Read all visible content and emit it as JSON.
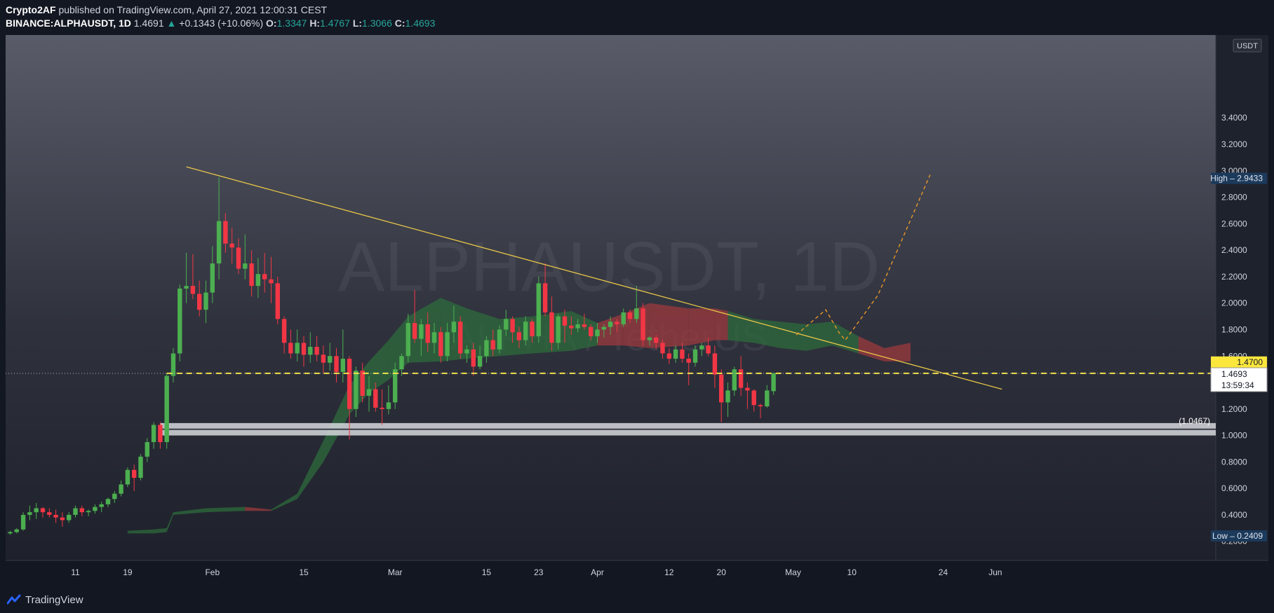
{
  "header": {
    "author": "Crypto2AF",
    "published": "published on TradingView.com, April 27, 2021 12:00:31 CEST",
    "symbol": "BINANCE:ALPHAUSDT, 1D",
    "last": "1.4691",
    "change_arrow": "▲",
    "change": "+0.1343 (+10.06%)",
    "o_label": "O:",
    "o_value": "1.3347",
    "h_label": "H:",
    "h_value": "1.4767",
    "l_label": "L:",
    "l_value": "1.3066",
    "c_label": "C:",
    "c_value": "1.4693"
  },
  "footer": {
    "brand": "TradingView",
    "logo_icon": "tradingview-logo-icon"
  },
  "chart_data": {
    "type": "candlestick",
    "watermark_symbol": "ALPHAUSDT, 1D",
    "watermark_name": "ALPHA / TetherUS",
    "currency_label": "USDT",
    "price_axis_ticks": [
      "3.4000",
      "3.2000",
      "3.0000",
      "2.8000",
      "2.6000",
      "2.4000",
      "2.2000",
      "2.0000",
      "1.8000",
      "1.6000",
      "1.4000",
      "1.2000",
      "1.0000",
      "0.8000",
      "0.6000",
      "0.4000",
      "0.2000"
    ],
    "time_axis_ticks": [
      {
        "label": "11",
        "day": 10
      },
      {
        "label": "19",
        "day": 18
      },
      {
        "label": "Feb",
        "day": 31
      },
      {
        "label": "15",
        "day": 45
      },
      {
        "label": "Mar",
        "day": 59
      },
      {
        "label": "15",
        "day": 73
      },
      {
        "label": "23",
        "day": 81
      },
      {
        "label": "Apr",
        "day": 90
      },
      {
        "label": "12",
        "day": 101
      },
      {
        "label": "20",
        "day": 109
      },
      {
        "label": "May",
        "day": 120
      },
      {
        "label": "10",
        "day": 129
      },
      {
        "label": "24",
        "day": 143
      },
      {
        "label": "Jun",
        "day": 151
      }
    ],
    "ylim": [
      0.2,
      3.45
    ],
    "xlim_days": [
      0,
      152
    ],
    "high_marker": {
      "label": "High",
      "value": "2.9433"
    },
    "low_marker": {
      "label": "Low",
      "value": "0.2409"
    },
    "level_line": {
      "value": 1.47,
      "label": "1.4700",
      "color": "#fbe73c"
    },
    "current_price": {
      "value": 1.4693,
      "label": "1.4693",
      "countdown": "13:59:34"
    },
    "support_zone": {
      "low": 1.0,
      "high": 1.0937,
      "label": "(1.0467)"
    },
    "trendline": {
      "start_day": 27,
      "start_price": 3.03,
      "end_day": 152,
      "end_price": 1.35
    },
    "projection": [
      [
        120.5,
        1.76
      ],
      [
        125,
        1.95
      ],
      [
        127,
        1.78
      ],
      [
        128,
        1.72
      ],
      [
        133,
        2.06
      ],
      [
        141,
        2.97
      ]
    ],
    "colors": {
      "up": "#4caf50",
      "down": "#f23645",
      "cloud_green": "#2e6b3c",
      "cloud_red": "#9c3a3e",
      "trend": "#e8c547",
      "projection": "#f59b25"
    },
    "candles": [
      [
        0.26,
        0.28,
        0.25,
        0.27
      ],
      [
        0.27,
        0.3,
        0.26,
        0.29
      ],
      [
        0.29,
        0.42,
        0.28,
        0.4
      ],
      [
        0.4,
        0.47,
        0.36,
        0.42
      ],
      [
        0.42,
        0.49,
        0.37,
        0.45
      ],
      [
        0.45,
        0.46,
        0.38,
        0.42
      ],
      [
        0.42,
        0.45,
        0.38,
        0.4
      ],
      [
        0.4,
        0.44,
        0.34,
        0.38
      ],
      [
        0.38,
        0.42,
        0.31,
        0.36
      ],
      [
        0.36,
        0.42,
        0.34,
        0.4
      ],
      [
        0.4,
        0.47,
        0.38,
        0.45
      ],
      [
        0.45,
        0.47,
        0.39,
        0.42
      ],
      [
        0.42,
        0.44,
        0.39,
        0.43
      ],
      [
        0.43,
        0.48,
        0.41,
        0.46
      ],
      [
        0.46,
        0.5,
        0.42,
        0.48
      ],
      [
        0.48,
        0.53,
        0.46,
        0.52
      ],
      [
        0.52,
        0.58,
        0.49,
        0.56
      ],
      [
        0.56,
        0.66,
        0.54,
        0.63
      ],
      [
        0.63,
        0.76,
        0.61,
        0.74
      ],
      [
        0.74,
        0.78,
        0.58,
        0.68
      ],
      [
        0.68,
        0.86,
        0.66,
        0.84
      ],
      [
        0.84,
        0.98,
        0.8,
        0.95
      ],
      [
        0.95,
        1.1,
        0.9,
        1.08
      ],
      [
        1.08,
        1.1,
        0.9,
        0.95
      ],
      [
        0.95,
        1.47,
        0.9,
        1.45
      ],
      [
        1.45,
        1.66,
        1.4,
        1.62
      ],
      [
        1.62,
        2.14,
        1.56,
        2.11
      ],
      [
        2.11,
        2.38,
        2.0,
        2.13
      ],
      [
        2.13,
        2.37,
        2.03,
        2.07
      ],
      [
        2.07,
        2.17,
        1.9,
        1.95
      ],
      [
        1.95,
        2.17,
        1.85,
        2.08
      ],
      [
        2.08,
        2.43,
        2.0,
        2.3
      ],
      [
        2.3,
        2.95,
        2.18,
        2.62
      ],
      [
        2.62,
        2.68,
        2.38,
        2.45
      ],
      [
        2.45,
        2.57,
        2.3,
        2.42
      ],
      [
        2.42,
        2.49,
        2.22,
        2.26
      ],
      [
        2.26,
        2.52,
        2.18,
        2.3
      ],
      [
        2.3,
        2.4,
        2.05,
        2.13
      ],
      [
        2.13,
        2.34,
        2.04,
        2.22
      ],
      [
        2.22,
        2.38,
        2.08,
        2.18
      ],
      [
        2.18,
        2.35,
        2.0,
        2.15
      ],
      [
        2.15,
        2.2,
        1.84,
        1.88
      ],
      [
        1.88,
        1.9,
        1.62,
        1.7
      ],
      [
        1.7,
        1.8,
        1.58,
        1.62
      ],
      [
        1.62,
        1.8,
        1.56,
        1.7
      ],
      [
        1.7,
        1.75,
        1.52,
        1.61
      ],
      [
        1.61,
        1.78,
        1.55,
        1.67
      ],
      [
        1.67,
        1.75,
        1.56,
        1.61
      ],
      [
        1.61,
        1.68,
        1.47,
        1.55
      ],
      [
        1.55,
        1.7,
        1.49,
        1.6
      ],
      [
        1.6,
        1.66,
        1.4,
        1.48
      ],
      [
        1.48,
        1.8,
        1.4,
        1.58
      ],
      [
        1.58,
        1.6,
        0.97,
        1.2
      ],
      [
        1.2,
        1.52,
        1.14,
        1.49
      ],
      [
        1.49,
        1.55,
        1.25,
        1.3
      ],
      [
        1.3,
        1.45,
        1.18,
        1.35
      ],
      [
        1.35,
        1.4,
        1.18,
        1.21
      ],
      [
        1.21,
        1.35,
        1.08,
        1.2
      ],
      [
        1.2,
        1.38,
        1.16,
        1.25
      ],
      [
        1.25,
        1.55,
        1.2,
        1.5
      ],
      [
        1.5,
        1.62,
        1.45,
        1.6
      ],
      [
        1.6,
        1.92,
        1.55,
        1.85
      ],
      [
        1.85,
        2.1,
        1.7,
        1.73
      ],
      [
        1.73,
        1.88,
        1.6,
        1.84
      ],
      [
        1.84,
        1.93,
        1.63,
        1.7
      ],
      [
        1.7,
        1.85,
        1.62,
        1.78
      ],
      [
        1.78,
        1.82,
        1.55,
        1.6
      ],
      [
        1.6,
        1.85,
        1.56,
        1.78
      ],
      [
        1.78,
        1.98,
        1.7,
        1.86
      ],
      [
        1.86,
        1.9,
        1.58,
        1.62
      ],
      [
        1.62,
        1.68,
        1.55,
        1.65
      ],
      [
        1.65,
        1.7,
        1.45,
        1.52
      ],
      [
        1.52,
        1.68,
        1.5,
        1.6
      ],
      [
        1.6,
        1.75,
        1.55,
        1.72
      ],
      [
        1.72,
        1.8,
        1.6,
        1.65
      ],
      [
        1.65,
        1.83,
        1.62,
        1.8
      ],
      [
        1.8,
        1.95,
        1.75,
        1.88
      ],
      [
        1.88,
        1.9,
        1.7,
        1.78
      ],
      [
        1.78,
        1.82,
        1.66,
        1.72
      ],
      [
        1.72,
        1.9,
        1.68,
        1.86
      ],
      [
        1.86,
        1.88,
        1.7,
        1.75
      ],
      [
        1.75,
        2.2,
        1.7,
        2.15
      ],
      [
        2.15,
        2.3,
        1.9,
        1.93
      ],
      [
        1.93,
        2.05,
        1.64,
        1.7
      ],
      [
        1.7,
        1.92,
        1.65,
        1.9
      ],
      [
        1.9,
        1.95,
        1.7,
        1.83
      ],
      [
        1.83,
        1.9,
        1.76,
        1.81
      ],
      [
        1.81,
        1.88,
        1.78,
        1.84
      ],
      [
        1.84,
        1.92,
        1.8,
        1.82
      ],
      [
        1.82,
        1.84,
        1.72,
        1.75
      ],
      [
        1.75,
        1.85,
        1.7,
        1.8
      ],
      [
        1.8,
        1.84,
        1.74,
        1.82
      ],
      [
        1.82,
        1.9,
        1.76,
        1.86
      ],
      [
        1.86,
        1.88,
        1.78,
        1.84
      ],
      [
        1.84,
        1.96,
        1.82,
        1.93
      ],
      [
        1.93,
        1.95,
        1.85,
        1.88
      ],
      [
        1.88,
        2.13,
        1.85,
        1.96
      ],
      [
        1.96,
        2.0,
        1.68,
        1.72
      ],
      [
        1.72,
        1.75,
        1.68,
        1.74
      ],
      [
        1.74,
        1.76,
        1.65,
        1.7
      ],
      [
        1.7,
        1.72,
        1.58,
        1.62
      ],
      [
        1.62,
        1.66,
        1.54,
        1.58
      ],
      [
        1.58,
        1.68,
        1.55,
        1.65
      ],
      [
        1.65,
        1.7,
        1.55,
        1.58
      ],
      [
        1.58,
        1.62,
        1.38,
        1.55
      ],
      [
        1.55,
        1.68,
        1.52,
        1.65
      ],
      [
        1.65,
        1.7,
        1.6,
        1.68
      ],
      [
        1.68,
        1.74,
        1.6,
        1.62
      ],
      [
        1.62,
        1.68,
        1.36,
        1.46
      ],
      [
        1.46,
        1.5,
        1.1,
        1.25
      ],
      [
        1.25,
        1.4,
        1.14,
        1.34
      ],
      [
        1.34,
        1.52,
        1.3,
        1.5
      ],
      [
        1.5,
        1.6,
        1.3,
        1.36
      ],
      [
        1.36,
        1.4,
        1.2,
        1.34
      ],
      [
        1.34,
        1.35,
        1.18,
        1.23
      ],
      [
        1.23,
        1.24,
        1.13,
        1.22
      ],
      [
        1.22,
        1.38,
        1.21,
        1.34
      ],
      [
        1.3347,
        1.4767,
        1.3066,
        1.4693
      ]
    ],
    "cloud": [
      [
        18,
        0.26,
        0.28,
        "g"
      ],
      [
        22,
        0.26,
        0.29,
        "g"
      ],
      [
        24,
        0.27,
        0.3,
        "g"
      ],
      [
        25,
        0.4,
        0.42,
        "g"
      ],
      [
        30,
        0.42,
        0.45,
        "g"
      ],
      [
        36,
        0.43,
        0.46,
        "r"
      ],
      [
        40,
        0.43,
        0.44,
        "g"
      ],
      [
        44,
        0.52,
        0.56,
        "g"
      ],
      [
        48,
        0.8,
        0.96,
        "g"
      ],
      [
        52,
        1.16,
        1.38,
        "g"
      ],
      [
        55,
        1.32,
        1.56,
        "g"
      ],
      [
        58,
        1.42,
        1.72,
        "g"
      ],
      [
        61,
        1.55,
        1.9,
        "g"
      ],
      [
        66,
        1.56,
        2.04,
        "g"
      ],
      [
        70,
        1.58,
        1.96,
        "g"
      ],
      [
        75,
        1.6,
        1.88,
        "g"
      ],
      [
        80,
        1.62,
        1.9,
        "g"
      ],
      [
        86,
        1.64,
        1.94,
        "g"
      ],
      [
        90,
        1.68,
        1.85,
        "r"
      ],
      [
        94,
        1.68,
        1.92,
        "r"
      ],
      [
        98,
        1.66,
        2.0,
        "r"
      ],
      [
        104,
        1.68,
        1.96,
        "r"
      ],
      [
        108,
        1.72,
        1.96,
        "r"
      ],
      [
        110,
        1.72,
        1.94,
        "g"
      ],
      [
        114,
        1.7,
        1.88,
        "g"
      ],
      [
        118,
        1.66,
        1.86,
        "g"
      ],
      [
        122,
        1.64,
        1.84,
        "g"
      ],
      [
        126,
        1.68,
        1.86,
        "g"
      ],
      [
        130,
        1.62,
        1.75,
        "r"
      ],
      [
        134,
        1.56,
        1.66,
        "r"
      ],
      [
        138,
        1.56,
        1.7,
        "r"
      ]
    ]
  }
}
